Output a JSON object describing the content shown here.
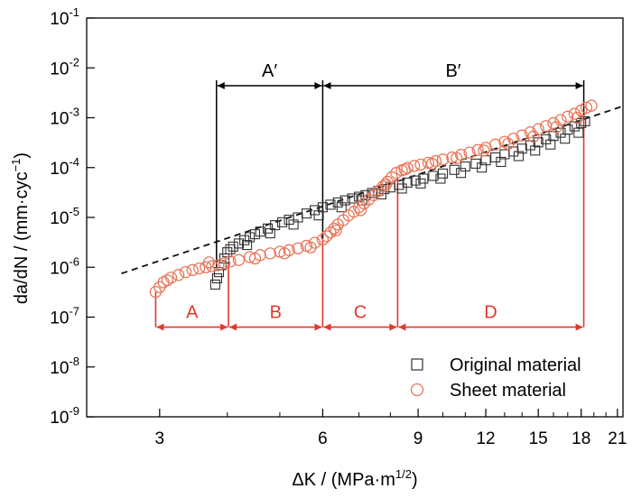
{
  "chart_data": {
    "type": "scatter",
    "xlabel": {
      "main": "ΔK / (MPa·m",
      "sup": "1/2",
      "close": ")"
    },
    "ylabel": {
      "main": "da/dN / (mm·cyc",
      "sup": "−1",
      "close": ")"
    },
    "x_scale": "log",
    "y_scale": "log",
    "xlim": [
      2.2,
      21.5
    ],
    "ylim": [
      1e-09,
      0.1
    ],
    "x_ticks": [
      3,
      6,
      9,
      12,
      15,
      18,
      21
    ],
    "x_tick_labels": [
      "3",
      "6",
      "9",
      "12",
      "15",
      "18",
      "21"
    ],
    "x_minor_ticks": [
      4,
      5,
      7,
      8,
      10,
      11,
      13,
      14,
      16,
      17,
      19,
      20
    ],
    "y_ticks": [
      {
        "value": 1e-09,
        "base": "10",
        "exp": "-9"
      },
      {
        "value": 1e-08,
        "base": "10",
        "exp": "-8"
      },
      {
        "value": 1e-07,
        "base": "10",
        "exp": "-7"
      },
      {
        "value": 1e-06,
        "base": "10",
        "exp": "-6"
      },
      {
        "value": 1e-05,
        "base": "10",
        "exp": "-5"
      },
      {
        "value": 0.0001,
        "base": "10",
        "exp": "-4"
      },
      {
        "value": 0.001,
        "base": "10",
        "exp": "-3"
      },
      {
        "value": 0.01,
        "base": "10",
        "exp": "-2"
      },
      {
        "value": 0.1,
        "base": "10",
        "exp": "-1"
      }
    ],
    "grid": false,
    "legend": {
      "placement": "bottom-right"
    },
    "series": [
      {
        "name": "Original material",
        "marker": "square",
        "color": "#333333",
        "points": [
          [
            3.8,
            4.5e-07
          ],
          [
            3.83,
            6e-07
          ],
          [
            3.86,
            8e-07
          ],
          [
            3.9,
            1.1e-06
          ],
          [
            3.95,
            1.5e-06
          ],
          [
            4.0,
            2e-06
          ],
          [
            4.05,
            2.3e-06
          ],
          [
            4.1,
            2.6e-06
          ],
          [
            4.2,
            3e-06
          ],
          [
            4.3,
            3.5e-06
          ],
          [
            4.4,
            4e-06
          ],
          [
            4.5,
            4.6e-06
          ],
          [
            4.6,
            5.2e-06
          ],
          [
            4.75,
            6e-06
          ],
          [
            4.9,
            7e-06
          ],
          [
            5.05,
            8e-06
          ],
          [
            5.2,
            9e-06
          ],
          [
            5.4,
            1e-05
          ],
          [
            5.6,
            1.2e-05
          ],
          [
            5.8,
            1.4e-05
          ],
          [
            6.0,
            1.6e-05
          ],
          [
            6.2,
            1.8e-05
          ],
          [
            6.4,
            2e-05
          ],
          [
            6.6,
            2.2e-05
          ],
          [
            6.8,
            2.4e-05
          ],
          [
            7.0,
            2.6e-05
          ],
          [
            7.2,
            2.8e-05
          ],
          [
            7.4,
            3.1e-05
          ],
          [
            7.6,
            3.4e-05
          ],
          [
            7.8,
            3.7e-05
          ],
          [
            8.0,
            4e-05
          ],
          [
            8.3,
            4.5e-05
          ],
          [
            8.6,
            5e-05
          ],
          [
            8.9,
            5.5e-05
          ],
          [
            9.2,
            6e-05
          ],
          [
            9.6,
            6.8e-05
          ],
          [
            10.0,
            7.6e-05
          ],
          [
            10.5,
            9e-05
          ],
          [
            11.0,
            0.000105
          ],
          [
            11.5,
            0.00012
          ],
          [
            12.0,
            0.00014
          ],
          [
            12.5,
            0.00016
          ],
          [
            13.0,
            0.000185
          ],
          [
            13.5,
            0.00021
          ],
          [
            14.0,
            0.00024
          ],
          [
            14.5,
            0.00028
          ],
          [
            15.0,
            0.00032
          ],
          [
            15.5,
            0.00037
          ],
          [
            16.0,
            0.00043
          ],
          [
            16.5,
            0.0005
          ],
          [
            17.0,
            0.00058
          ],
          [
            17.5,
            0.00067
          ],
          [
            18.0,
            0.00078
          ],
          [
            18.3,
            0.00085
          ],
          [
            4.35,
            2.8e-06
          ],
          [
            4.8,
            4.8e-06
          ],
          [
            5.3,
            7.2e-06
          ],
          [
            5.9,
            1.1e-05
          ],
          [
            6.5,
            1.6e-05
          ],
          [
            7.1,
            2.2e-05
          ],
          [
            7.7,
            2.9e-05
          ],
          [
            8.4,
            3.8e-05
          ],
          [
            9.1,
            4.8e-05
          ],
          [
            9.9,
            6e-05
          ],
          [
            10.8,
            7.8e-05
          ],
          [
            11.8,
            0.0001
          ],
          [
            12.8,
            0.00013
          ],
          [
            13.8,
            0.00017
          ],
          [
            14.8,
            0.00022
          ],
          [
            15.8,
            0.00029
          ],
          [
            16.8,
            0.00038
          ],
          [
            17.8,
            0.0005
          ]
        ]
      },
      {
        "name": "Sheet material",
        "marker": "circle",
        "color": "#e8765a",
        "points": [
          [
            2.95,
            3.2e-07
          ],
          [
            3.0,
            4e-07
          ],
          [
            3.05,
            5e-07
          ],
          [
            3.1,
            5.5e-07
          ],
          [
            3.15,
            6.2e-07
          ],
          [
            3.25,
            7e-07
          ],
          [
            3.35,
            8e-07
          ],
          [
            3.45,
            8.8e-07
          ],
          [
            3.55,
            9.5e-07
          ],
          [
            3.65,
            1e-06
          ],
          [
            3.75,
            1.05e-06
          ],
          [
            3.85,
            1.1e-06
          ],
          [
            3.95,
            1.2e-06
          ],
          [
            4.05,
            1.3e-06
          ],
          [
            4.2,
            1.4e-06
          ],
          [
            4.4,
            1.6e-06
          ],
          [
            4.6,
            1.75e-06
          ],
          [
            4.8,
            1.9e-06
          ],
          [
            5.0,
            2.05e-06
          ],
          [
            5.2,
            2.2e-06
          ],
          [
            5.4,
            2.4e-06
          ],
          [
            5.6,
            2.7e-06
          ],
          [
            5.8,
            3.1e-06
          ],
          [
            6.0,
            3.6e-06
          ],
          [
            6.1,
            4.2e-06
          ],
          [
            6.2,
            5e-06
          ],
          [
            6.3,
            6e-06
          ],
          [
            6.4,
            7.2e-06
          ],
          [
            6.55,
            8.8e-06
          ],
          [
            6.7,
            1.1e-05
          ],
          [
            6.85,
            1.3e-05
          ],
          [
            7.0,
            1.6e-05
          ],
          [
            7.15,
            1.9e-05
          ],
          [
            7.3,
            2.3e-05
          ],
          [
            7.45,
            2.8e-05
          ],
          [
            7.6,
            3.4e-05
          ],
          [
            7.75,
            4.2e-05
          ],
          [
            7.9,
            5.2e-05
          ],
          [
            8.05,
            6.4e-05
          ],
          [
            8.2,
            7.8e-05
          ],
          [
            8.4,
            8.8e-05
          ],
          [
            8.6,
            9.8e-05
          ],
          [
            8.85,
            0.000108
          ],
          [
            9.1,
            0.000115
          ],
          [
            9.4,
            0.000125
          ],
          [
            9.7,
            0.000135
          ],
          [
            10.0,
            0.000145
          ],
          [
            10.4,
            0.00016
          ],
          [
            10.8,
            0.00018
          ],
          [
            11.2,
            0.0002
          ],
          [
            11.6,
            0.000225
          ],
          [
            12.0,
            0.00025
          ],
          [
            12.5,
            0.00029
          ],
          [
            13.0,
            0.00033
          ],
          [
            13.5,
            0.00038
          ],
          [
            14.0,
            0.00044
          ],
          [
            14.5,
            0.00051
          ],
          [
            15.0,
            0.00059
          ],
          [
            15.5,
            0.00068
          ],
          [
            16.0,
            0.00078
          ],
          [
            16.5,
            0.0009
          ],
          [
            17.0,
            0.00105
          ],
          [
            17.5,
            0.0012
          ],
          [
            18.0,
            0.0014
          ],
          [
            18.4,
            0.0016
          ],
          [
            18.8,
            0.00175
          ],
          [
            3.7,
            1.25e-06
          ],
          [
            4.5,
            1.5e-06
          ],
          [
            5.1,
            1.9e-06
          ],
          [
            5.7,
            2.5e-06
          ],
          [
            6.35,
            5.5e-06
          ],
          [
            7.05,
            1.4e-05
          ],
          [
            7.85,
            4.6e-05
          ],
          [
            8.5,
            9.2e-05
          ],
          [
            9.55,
            0.00012
          ],
          [
            10.6,
            0.000155
          ],
          [
            11.9,
            0.00022
          ],
          [
            13.2,
            0.0003
          ],
          [
            14.7,
            0.00042
          ],
          [
            16.2,
            0.00065
          ],
          [
            17.7,
            0.001
          ]
        ]
      }
    ],
    "fit_line": {
      "style": "dashed",
      "x": [
        2.55,
        21.3
      ],
      "y": [
        7.5e-07,
        0.00165
      ]
    },
    "annotations": {
      "black_spans": [
        {
          "label": "A′",
          "x_from": 3.82,
          "x_to": 6.0,
          "y": 0.0044,
          "drop_to": 1e-06,
          "cap_to": 0.0044
        },
        {
          "label": "B′",
          "x_from": 6.0,
          "x_to": 18.2,
          "y": 0.0044,
          "drop_to": 3.8e-06,
          "cap_to": 0.0011
        }
      ],
      "red_spans": [
        {
          "label": "A",
          "x_from": 2.95,
          "x_to": 4.02,
          "y": 6.3e-08
        },
        {
          "label": "B",
          "x_from": 4.02,
          "x_to": 6.0,
          "y": 6.3e-08
        },
        {
          "label": "C",
          "x_from": 6.0,
          "x_to": 8.25,
          "y": 6.3e-08
        },
        {
          "label": "D",
          "x_from": 8.25,
          "x_to": 18.2,
          "y": 6.3e-08
        }
      ],
      "red_verticals": [
        {
          "x": 2.95,
          "y_top": 3.2e-07
        },
        {
          "x": 4.02,
          "y_top": 1.3e-06
        },
        {
          "x": 6.0,
          "y_top": 5e-06
        },
        {
          "x": 8.25,
          "y_top": 6.4e-05
        },
        {
          "x": 18.2,
          "y_top": 0.0013
        }
      ],
      "red_color": "#e0392c"
    }
  }
}
